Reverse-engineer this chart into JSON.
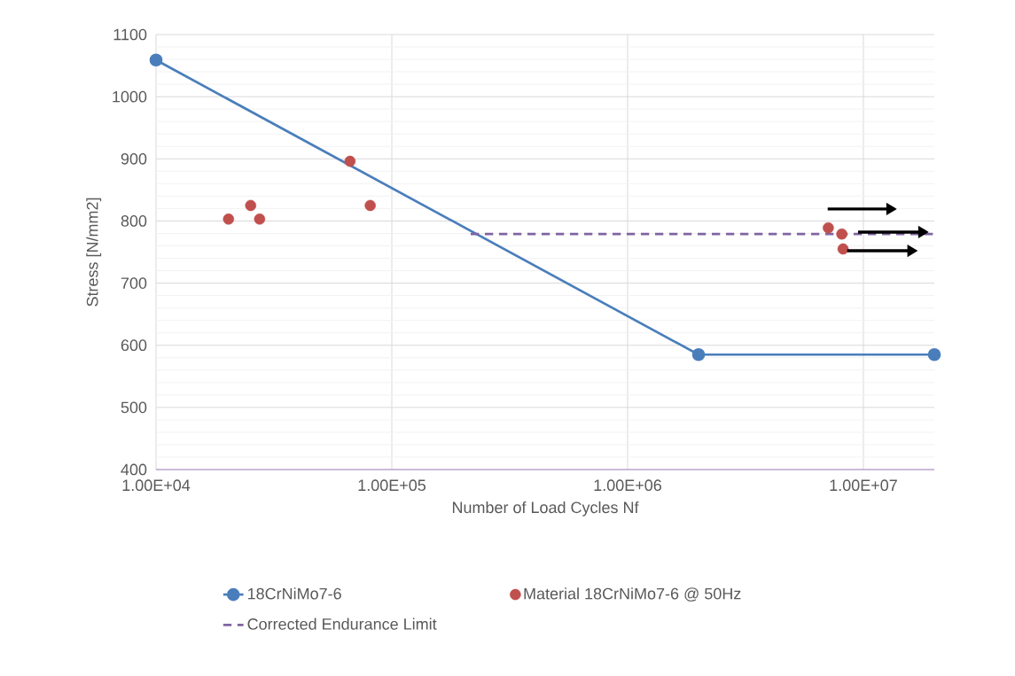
{
  "chart_data": {
    "type": "line",
    "xlabel": "Number of Load Cycles Nf",
    "ylabel": "Stress [N/mm2]",
    "log": "x",
    "grid": true,
    "legend": "bottom",
    "xlim": [
      10000,
      20000000
    ],
    "ylim": [
      400,
      1100
    ],
    "xticks": [
      {
        "value": 10000,
        "label": "1.00E+04"
      },
      {
        "value": 100000,
        "label": "1.00E+05"
      },
      {
        "value": 1000000,
        "label": "1.00E+06"
      },
      {
        "value": 10000000,
        "label": "1.00E+07"
      }
    ],
    "yticks": [
      400,
      500,
      600,
      700,
      800,
      900,
      1000,
      1100
    ],
    "series": [
      {
        "name": "18CrNiMo7-6",
        "type": "line",
        "color": "#4a7ebb",
        "marker": "circle",
        "line_style": "solid",
        "x": [
          10000,
          2000000,
          20000000
        ],
        "values": [
          1059,
          585,
          585
        ]
      },
      {
        "name": "Material 18CrNiMo7-6 @ 50Hz",
        "type": "scatter",
        "color": "#c0504d",
        "marker": "circle",
        "x": [
          20300,
          25200,
          27500,
          66500,
          81000,
          7100000,
          8100000,
          8200000
        ],
        "values": [
          803,
          825,
          803,
          896,
          825,
          789,
          779,
          755
        ]
      },
      {
        "name": "Corrected Endurance Limit",
        "type": "line",
        "color": "#8064a2",
        "marker": "none",
        "line_style": "dashed",
        "x": [
          216000,
          20000000
        ],
        "values": [
          779,
          779
        ]
      }
    ]
  }
}
